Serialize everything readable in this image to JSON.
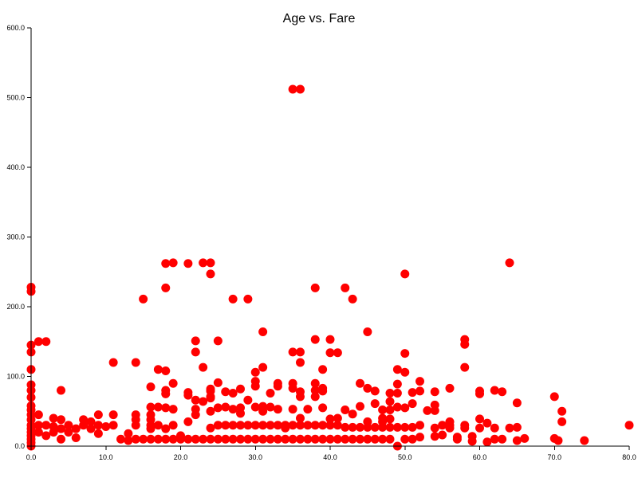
{
  "chart_data": {
    "type": "scatter",
    "title": "Age vs. Fare",
    "xlabel": "",
    "ylabel": "",
    "xlim": [
      0,
      80
    ],
    "ylim": [
      0,
      600
    ],
    "grid": false,
    "legend": "none",
    "marker_color": "#ff0000",
    "x_ticks": [
      "0.0",
      "10.0",
      "20.0",
      "30.0",
      "40.0",
      "50.0",
      "60.0",
      "70.0",
      "80.0"
    ],
    "y_ticks": [
      "0.0",
      "100.0",
      "200.0",
      "300.0",
      "400.0",
      "500.0",
      "600.0"
    ],
    "series": [
      {
        "points": [
          [
            35,
            512
          ],
          [
            36,
            512
          ],
          [
            0,
            228
          ],
          [
            0,
            222
          ],
          [
            0,
            145
          ],
          [
            0,
            135
          ],
          [
            0,
            110
          ],
          [
            0,
            88
          ],
          [
            0,
            80
          ],
          [
            0,
            70
          ],
          [
            0,
            58
          ],
          [
            0,
            52
          ],
          [
            0,
            45
          ],
          [
            0,
            38
          ],
          [
            0,
            30
          ],
          [
            0,
            25
          ],
          [
            0,
            20
          ],
          [
            0,
            15
          ],
          [
            0,
            10
          ],
          [
            0,
            5
          ],
          [
            0,
            0
          ],
          [
            1,
            150
          ],
          [
            1,
            45
          ],
          [
            1,
            30
          ],
          [
            1,
            20
          ],
          [
            2,
            150
          ],
          [
            2,
            30
          ],
          [
            2,
            15
          ],
          [
            3,
            40
          ],
          [
            3,
            28
          ],
          [
            3,
            20
          ],
          [
            4,
            80
          ],
          [
            4,
            38
          ],
          [
            4,
            25
          ],
          [
            4,
            10
          ],
          [
            5,
            30
          ],
          [
            5,
            20
          ],
          [
            6,
            25
          ],
          [
            6,
            12
          ],
          [
            7,
            38
          ],
          [
            7,
            30
          ],
          [
            8,
            35
          ],
          [
            8,
            25
          ],
          [
            9,
            45
          ],
          [
            9,
            30
          ],
          [
            9,
            18
          ],
          [
            10,
            28
          ],
          [
            11,
            120
          ],
          [
            11,
            45
          ],
          [
            11,
            30
          ],
          [
            12,
            10
          ],
          [
            13,
            18
          ],
          [
            13,
            8
          ],
          [
            14,
            120
          ],
          [
            14,
            45
          ],
          [
            14,
            38
          ],
          [
            14,
            30
          ],
          [
            14,
            10
          ],
          [
            15,
            211
          ],
          [
            15,
            10
          ],
          [
            16,
            85
          ],
          [
            16,
            56
          ],
          [
            16,
            45
          ],
          [
            16,
            38
          ],
          [
            16,
            30
          ],
          [
            16,
            25
          ],
          [
            16,
            10
          ],
          [
            17,
            110
          ],
          [
            17,
            56
          ],
          [
            17,
            30
          ],
          [
            17,
            10
          ],
          [
            18,
            262
          ],
          [
            18,
            227
          ],
          [
            18,
            108
          ],
          [
            18,
            80
          ],
          [
            18,
            75
          ],
          [
            18,
            55
          ],
          [
            18,
            25
          ],
          [
            18,
            10
          ],
          [
            19,
            263
          ],
          [
            19,
            90
          ],
          [
            19,
            53
          ],
          [
            19,
            30
          ],
          [
            19,
            10
          ],
          [
            20,
            15
          ],
          [
            20,
            10
          ],
          [
            21,
            262
          ],
          [
            21,
            77
          ],
          [
            21,
            73
          ],
          [
            21,
            35
          ],
          [
            21,
            10
          ],
          [
            22,
            151
          ],
          [
            22,
            135
          ],
          [
            22,
            66
          ],
          [
            22,
            53
          ],
          [
            22,
            45
          ],
          [
            22,
            10
          ],
          [
            23,
            263
          ],
          [
            23,
            113
          ],
          [
            23,
            64
          ],
          [
            23,
            10
          ],
          [
            24,
            263
          ],
          [
            24,
            247
          ],
          [
            24,
            82
          ],
          [
            24,
            79
          ],
          [
            24,
            71
          ],
          [
            24,
            69
          ],
          [
            24,
            50
          ],
          [
            24,
            26
          ],
          [
            24,
            10
          ],
          [
            25,
            151
          ],
          [
            25,
            91
          ],
          [
            25,
            55
          ],
          [
            25,
            30
          ],
          [
            25,
            10
          ],
          [
            26,
            78
          ],
          [
            26,
            56
          ],
          [
            26,
            30
          ],
          [
            26,
            10
          ],
          [
            27,
            211
          ],
          [
            27,
            76
          ],
          [
            27,
            53
          ],
          [
            27,
            30
          ],
          [
            27,
            10
          ],
          [
            28,
            82
          ],
          [
            28,
            55
          ],
          [
            28,
            47
          ],
          [
            28,
            30
          ],
          [
            28,
            10
          ],
          [
            29,
            211
          ],
          [
            29,
            66
          ],
          [
            29,
            30
          ],
          [
            29,
            10
          ],
          [
            30,
            106
          ],
          [
            30,
            93
          ],
          [
            30,
            86
          ],
          [
            30,
            56
          ],
          [
            30,
            30
          ],
          [
            30,
            10
          ],
          [
            31,
            164
          ],
          [
            31,
            113
          ],
          [
            31,
            57
          ],
          [
            31,
            50
          ],
          [
            31,
            30
          ],
          [
            31,
            10
          ],
          [
            32,
            76
          ],
          [
            32,
            56
          ],
          [
            32,
            30
          ],
          [
            32,
            10
          ],
          [
            33,
            90
          ],
          [
            33,
            86
          ],
          [
            33,
            53
          ],
          [
            33,
            30
          ],
          [
            33,
            10
          ],
          [
            34,
            30
          ],
          [
            34,
            26
          ],
          [
            34,
            10
          ],
          [
            35,
            135
          ],
          [
            35,
            90
          ],
          [
            35,
            83
          ],
          [
            35,
            53
          ],
          [
            35,
            30
          ],
          [
            35,
            10
          ],
          [
            36,
            135
          ],
          [
            36,
            120
          ],
          [
            36,
            78
          ],
          [
            36,
            71
          ],
          [
            36,
            40
          ],
          [
            36,
            30
          ],
          [
            36,
            10
          ],
          [
            37,
            53
          ],
          [
            37,
            30
          ],
          [
            37,
            10
          ],
          [
            38,
            227
          ],
          [
            38,
            153
          ],
          [
            38,
            90
          ],
          [
            38,
            80
          ],
          [
            38,
            71
          ],
          [
            38,
            30
          ],
          [
            38,
            10
          ],
          [
            39,
            110
          ],
          [
            39,
            83
          ],
          [
            39,
            79
          ],
          [
            39,
            55
          ],
          [
            39,
            30
          ],
          [
            39,
            10
          ],
          [
            40,
            153
          ],
          [
            40,
            134
          ],
          [
            40,
            39
          ],
          [
            40,
            30
          ],
          [
            40,
            10
          ],
          [
            41,
            134
          ],
          [
            41,
            40
          ],
          [
            41,
            30
          ],
          [
            41,
            10
          ],
          [
            42,
            227
          ],
          [
            42,
            52
          ],
          [
            42,
            27
          ],
          [
            42,
            10
          ],
          [
            43,
            211
          ],
          [
            43,
            46
          ],
          [
            43,
            27
          ],
          [
            43,
            10
          ],
          [
            44,
            90
          ],
          [
            44,
            57
          ],
          [
            44,
            27
          ],
          [
            44,
            10
          ],
          [
            45,
            164
          ],
          [
            45,
            83
          ],
          [
            45,
            35
          ],
          [
            45,
            27
          ],
          [
            45,
            10
          ],
          [
            46,
            79
          ],
          [
            46,
            61
          ],
          [
            46,
            27
          ],
          [
            46,
            10
          ],
          [
            47,
            52
          ],
          [
            47,
            40
          ],
          [
            47,
            35
          ],
          [
            47,
            27
          ],
          [
            47,
            10
          ],
          [
            48,
            76
          ],
          [
            48,
            64
          ],
          [
            48,
            52
          ],
          [
            48,
            39
          ],
          [
            48,
            27
          ],
          [
            48,
            10
          ],
          [
            49,
            110
          ],
          [
            49,
            89
          ],
          [
            49,
            76
          ],
          [
            49,
            56
          ],
          [
            49,
            27
          ],
          [
            49,
            0
          ],
          [
            50,
            247
          ],
          [
            50,
            133
          ],
          [
            50,
            106
          ],
          [
            50,
            55
          ],
          [
            50,
            27
          ],
          [
            50,
            10
          ],
          [
            51,
            77
          ],
          [
            51,
            61
          ],
          [
            51,
            27
          ],
          [
            51,
            10
          ],
          [
            52,
            93
          ],
          [
            52,
            79
          ],
          [
            52,
            30
          ],
          [
            52,
            13
          ],
          [
            53,
            51
          ],
          [
            54,
            78
          ],
          [
            54,
            59
          ],
          [
            54,
            51
          ],
          [
            54,
            26
          ],
          [
            54,
            14
          ],
          [
            55,
            30
          ],
          [
            55,
            16
          ],
          [
            56,
            83
          ],
          [
            56,
            35
          ],
          [
            56,
            30
          ],
          [
            56,
            26
          ],
          [
            57,
            13
          ],
          [
            57,
            10
          ],
          [
            58,
            153
          ],
          [
            58,
            146
          ],
          [
            58,
            113
          ],
          [
            58,
            30
          ],
          [
            58,
            26
          ],
          [
            59,
            14
          ],
          [
            59,
            7
          ],
          [
            60,
            79
          ],
          [
            60,
            75
          ],
          [
            60,
            39
          ],
          [
            60,
            26
          ],
          [
            61,
            33
          ],
          [
            61,
            6
          ],
          [
            62,
            80
          ],
          [
            62,
            26
          ],
          [
            62,
            10
          ],
          [
            63,
            78
          ],
          [
            63,
            10
          ],
          [
            64,
            263
          ],
          [
            64,
            26
          ],
          [
            65,
            62
          ],
          [
            65,
            27
          ],
          [
            65,
            8
          ],
          [
            66,
            11
          ],
          [
            70,
            71
          ],
          [
            70,
            11
          ],
          [
            70.5,
            8
          ],
          [
            71,
            50
          ],
          [
            71,
            35
          ],
          [
            74,
            8
          ],
          [
            80,
            30
          ]
        ]
      }
    ]
  }
}
